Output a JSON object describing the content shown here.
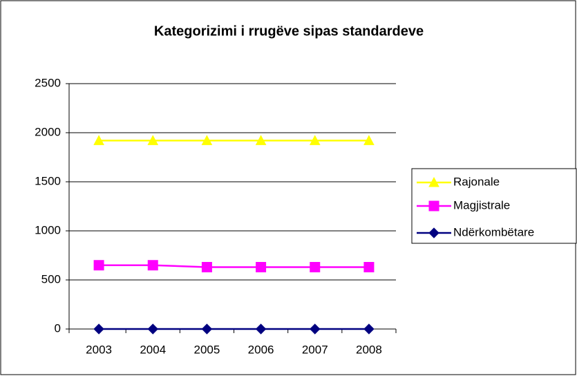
{
  "chart_data": {
    "type": "line",
    "title": "Kategorizimi i rrugëve sipas standardeve",
    "categories": [
      "2003",
      "2004",
      "2005",
      "2006",
      "2007",
      "2008"
    ],
    "series": [
      {
        "name": "Rajonale",
        "color": "#ffff00",
        "marker": "triangle",
        "values": [
          1920,
          1920,
          1920,
          1920,
          1920,
          1920
        ]
      },
      {
        "name": "Magjistrale",
        "color": "#ff00ff",
        "marker": "square",
        "values": [
          650,
          650,
          630,
          630,
          630,
          630
        ]
      },
      {
        "name": "Ndërkombëtare",
        "color": "#000080",
        "marker": "diamond",
        "values": [
          0,
          0,
          0,
          0,
          0,
          0
        ]
      }
    ],
    "ylim": [
      0,
      2500
    ],
    "yticks": [
      0,
      500,
      1000,
      1500,
      2000,
      2500
    ],
    "grid": true,
    "legend": "right"
  }
}
